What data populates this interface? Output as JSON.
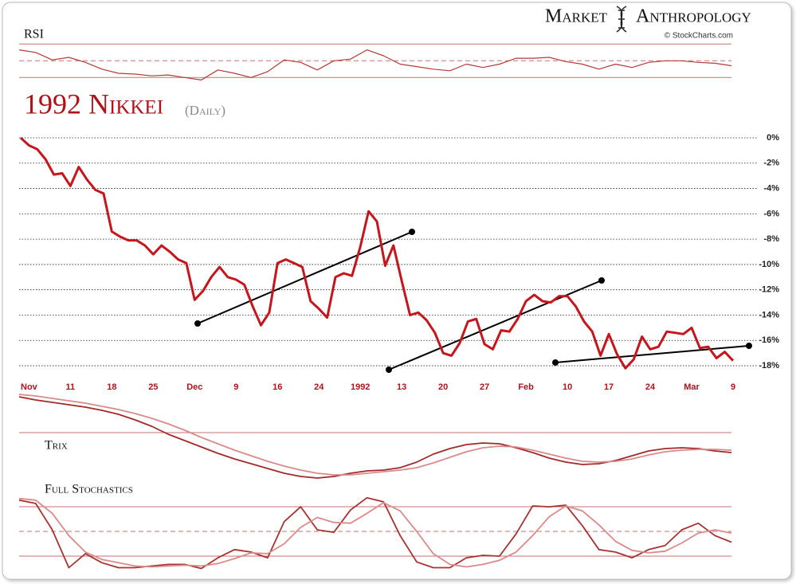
{
  "header": {
    "brand": [
      "Market",
      "Anthropology"
    ],
    "credit": "© StockCharts.com"
  },
  "chart_data": [
    {
      "type": "line",
      "title": "1992 Nikkei",
      "subtitle": "(Daily)",
      "color": "#c4161c",
      "categories": [
        null,
        "Nov",
        null,
        null,
        null,
        null,
        "11",
        null,
        null,
        null,
        null,
        "18",
        null,
        null,
        null,
        null,
        "25",
        null,
        null,
        null,
        null,
        "Dec",
        null,
        null,
        null,
        null,
        "9",
        null,
        null,
        null,
        null,
        "16",
        null,
        null,
        null,
        null,
        "24",
        null,
        null,
        null,
        null,
        "1992",
        null,
        null,
        null,
        null,
        "13",
        null,
        null,
        null,
        null,
        "20",
        null,
        null,
        null,
        null,
        "27",
        null,
        null,
        null,
        null,
        "Feb",
        null,
        null,
        null,
        null,
        "10",
        null,
        null,
        null,
        null,
        "17",
        null,
        null,
        null,
        null,
        "24",
        null,
        null,
        null,
        null,
        "Mar",
        null,
        null,
        null,
        null,
        "9"
      ],
      "values": [
        0,
        -0.6,
        -0.9,
        -1.7,
        -2.9,
        -2.8,
        -3.8,
        -2.3,
        -3.3,
        -4.1,
        -4.4,
        -7.4,
        -7.8,
        -8.1,
        -8.1,
        -8.5,
        -9.2,
        -8.5,
        -9.0,
        -9.6,
        -9.9,
        -12.8,
        -12.1,
        -11.0,
        -10.2,
        -11.0,
        -11.2,
        -11.6,
        -13.3,
        -14.8,
        -13.8,
        -9.9,
        -9.6,
        -9.9,
        -10.2,
        -12.9,
        -13.5,
        -14.2,
        -11.0,
        -10.7,
        -10.9,
        -8.6,
        -5.8,
        -6.6,
        -10.1,
        -8.5,
        -11.3,
        -14.0,
        -13.8,
        -14.4,
        -15.4,
        -17.0,
        -17.2,
        -16.2,
        -14.5,
        -14.3,
        -16.3,
        -16.7,
        -15.2,
        -15.3,
        -14.3,
        -12.9,
        -12.4,
        -12.9,
        -13.0,
        -12.5,
        -12.5,
        -13.3,
        -14.5,
        -15.3,
        -17.2,
        -15.5,
        -17.1,
        -18.2,
        -17.5,
        -15.7,
        -16.7,
        -16.5,
        -15.3,
        -15.4,
        -15.5,
        -15.0,
        -16.6,
        -16.5,
        -17.4,
        -16.9,
        -17.6
      ],
      "ylim": [
        -18.6,
        0
      ],
      "yticks": [
        {
          "value": 0,
          "label": "0%"
        },
        {
          "value": -2,
          "label": "-2%"
        },
        {
          "value": -4,
          "label": "-4%"
        },
        {
          "value": -6,
          "label": "-6%"
        },
        {
          "value": -8,
          "label": "-8%"
        },
        {
          "value": -10,
          "label": "-10%"
        },
        {
          "value": -12,
          "label": "-12%"
        },
        {
          "value": -14,
          "label": "-14%"
        },
        {
          "value": -16,
          "label": "-16%"
        },
        {
          "value": -18,
          "label": "-18%"
        }
      ],
      "grid": true
    },
    {
      "type": "line",
      "title": "RSI",
      "ylim": [
        25,
        75
      ],
      "ref_lines": [
        70,
        50,
        30
      ],
      "series": [
        {
          "color": "#b43a3a",
          "values": [
            63,
            60,
            51,
            54,
            48,
            40,
            35,
            34,
            32,
            33,
            30,
            27,
            39,
            35,
            30,
            37,
            51,
            48,
            39,
            50,
            52,
            63,
            56,
            46,
            43,
            40,
            38,
            46,
            42,
            46,
            53,
            53,
            54,
            49,
            46,
            40,
            46,
            42,
            48,
            50,
            50,
            48,
            47,
            44
          ]
        }
      ]
    },
    {
      "type": "line",
      "title": "Trix",
      "ylim": [
        -0.6,
        0.5
      ],
      "ref_lines": [
        0
      ],
      "series": [
        {
          "color": "#a32a2a",
          "values": [
            0.45,
            0.41,
            0.38,
            0.35,
            0.32,
            0.28,
            0.23,
            0.16,
            0.08,
            -0.02,
            -0.1,
            -0.18,
            -0.26,
            -0.33,
            -0.39,
            -0.45,
            -0.51,
            -0.55,
            -0.57,
            -0.55,
            -0.51,
            -0.48,
            -0.47,
            -0.44,
            -0.37,
            -0.27,
            -0.2,
            -0.15,
            -0.13,
            -0.14,
            -0.19,
            -0.25,
            -0.32,
            -0.37,
            -0.4,
            -0.39,
            -0.35,
            -0.29,
            -0.23,
            -0.2,
            -0.19,
            -0.2,
            -0.23,
            -0.25
          ]
        },
        {
          "color": "#d88b8b",
          "values": [
            0.48,
            0.46,
            0.43,
            0.4,
            0.37,
            0.33,
            0.29,
            0.24,
            0.18,
            0.11,
            0.03,
            -0.06,
            -0.14,
            -0.22,
            -0.29,
            -0.36,
            -0.42,
            -0.47,
            -0.51,
            -0.53,
            -0.53,
            -0.51,
            -0.49,
            -0.47,
            -0.44,
            -0.38,
            -0.31,
            -0.24,
            -0.19,
            -0.17,
            -0.18,
            -0.22,
            -0.27,
            -0.32,
            -0.36,
            -0.37,
            -0.36,
            -0.33,
            -0.28,
            -0.24,
            -0.22,
            -0.21,
            -0.21,
            -0.22
          ]
        }
      ]
    },
    {
      "type": "line",
      "title": "Full Stochastics",
      "ylim": [
        0,
        100
      ],
      "ref_lines": [
        80,
        50,
        20
      ],
      "series": [
        {
          "color": "#a83232",
          "values": [
            88,
            84,
            52,
            6,
            23,
            12,
            6,
            6,
            8,
            10,
            10,
            5,
            18,
            28,
            25,
            18,
            62,
            80,
            52,
            49,
            76,
            91,
            86,
            45,
            13,
            6,
            6,
            18,
            21,
            20,
            47,
            81,
            80,
            82,
            57,
            28,
            25,
            18,
            28,
            33,
            52,
            60,
            45,
            37
          ]
        },
        {
          "color": "#d98b8b",
          "values": [
            90,
            88,
            72,
            45,
            25,
            16,
            12,
            8,
            7,
            8,
            9,
            8,
            11,
            17,
            24,
            23,
            35,
            55,
            67,
            61,
            60,
            72,
            85,
            75,
            50,
            23,
            10,
            7,
            10,
            15,
            25,
            45,
            68,
            81,
            75,
            58,
            38,
            27,
            24,
            26,
            36,
            48,
            52,
            48
          ]
        }
      ]
    }
  ]
}
